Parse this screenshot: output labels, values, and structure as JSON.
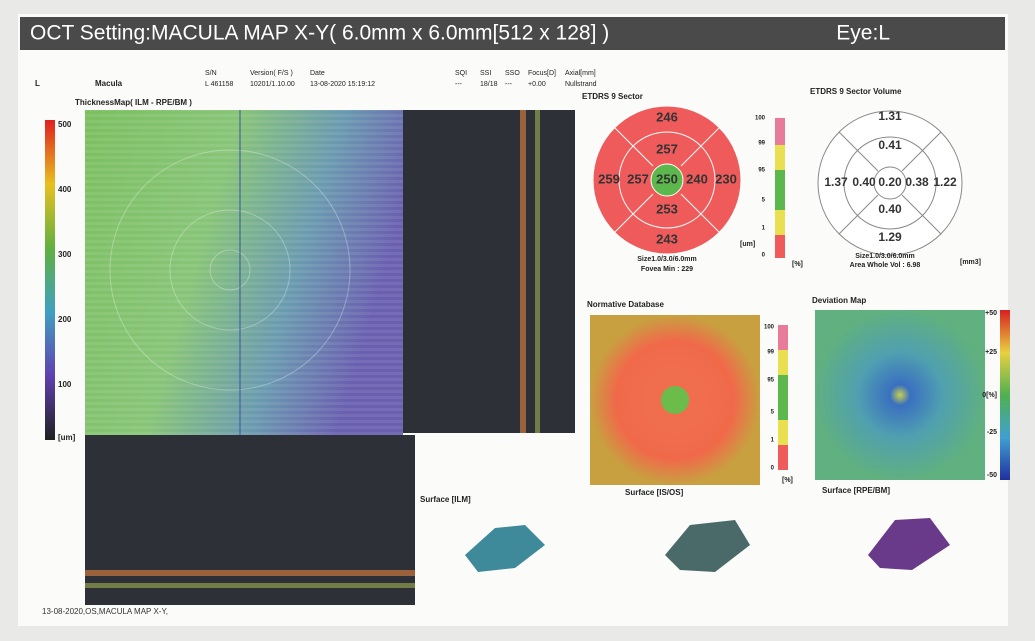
{
  "header": {
    "title": "OCT Setting:MACULA MAP X-Y( 6.0mm x 6.0mm[512 x 128] )",
    "eye": "Eye:L"
  },
  "info": {
    "eye": "L",
    "scan": "Macula",
    "columns": [
      "S/N",
      "Version( F/S )",
      "Date",
      "SQI",
      "SSI",
      "SSO",
      "Focus[D]",
      "Axial[mm]"
    ],
    "values": [
      "L  461158",
      "10201/1.10.00",
      "13-08-2020 15:19:12",
      "---",
      "18/18",
      "---",
      "+0.00",
      "Nullstrand"
    ]
  },
  "thickness_map": {
    "title": "ThicknessMap( ILM - RPE/BM )",
    "scale": [
      "500",
      "400",
      "300",
      "200",
      "100",
      "[um]"
    ]
  },
  "etdrs": {
    "title": "ETDRS 9 Sector",
    "outer_top": "246",
    "inner_top": "257",
    "outer_left": "259",
    "inner_left": "257",
    "center": "250",
    "inner_right": "240",
    "outer_right": "230",
    "inner_bottom": "253",
    "outer_bottom": "243",
    "scale": [
      "100",
      "99",
      "95",
      "5",
      "1",
      "0"
    ],
    "unit": "[um]",
    "percent_unit": "[%]",
    "size": "Size1.0/3.0/6.0mm",
    "fovea_min": "Fovea Min : 229"
  },
  "volume": {
    "title": "ETDRS 9 Sector Volume",
    "outer_top": "1.31",
    "inner_top": "0.41",
    "outer_left": "1.37",
    "inner_left": "0.40",
    "center": "0.20",
    "inner_right": "0.38",
    "outer_right": "1.22",
    "inner_bottom": "0.40",
    "outer_bottom": "1.29",
    "unit": "[mm3]",
    "size": "Size1.0/3.0/6.0mm",
    "area": "Area Whole Vol : 6.98"
  },
  "normative": {
    "title": "Normative Database",
    "scale": [
      "100",
      "99",
      "95",
      "5",
      "1",
      "0"
    ],
    "unit": "[%]"
  },
  "deviation": {
    "title": "Deviation Map",
    "scale": [
      "+50",
      "+25",
      "0[%]",
      "-25",
      "-50"
    ]
  },
  "surfaces": [
    "Surface [ILM]",
    "Surface [IS/OS]",
    "Surface [RPE/BM]"
  ],
  "footer": "13-08-2020,OS,MACULA MAP X-Y,"
}
